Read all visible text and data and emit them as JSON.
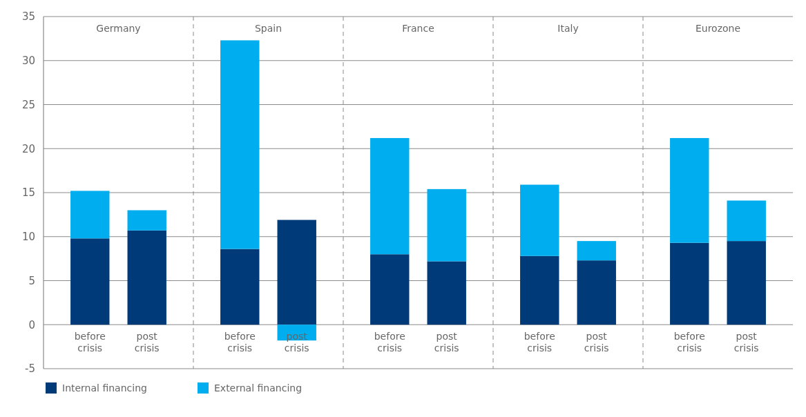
{
  "chart_data": {
    "type": "bar",
    "stacked": true,
    "categories": [
      "before crisis",
      "post crisis",
      "before crisis",
      "post crisis",
      "before crisis",
      "post crisis",
      "before crisis",
      "post crisis",
      "before crisis",
      "post crisis"
    ],
    "series": [
      {
        "name": "Internal financing",
        "color": "#003a78",
        "values": [
          9.8,
          10.7,
          8.6,
          11.9,
          8.0,
          7.2,
          7.8,
          7.3,
          9.3,
          9.5
        ]
      },
      {
        "name": "External financing",
        "color": "#00aeef",
        "values": [
          5.4,
          2.3,
          23.7,
          -1.8,
          13.2,
          8.2,
          8.1,
          2.2,
          11.9,
          4.6
        ]
      }
    ],
    "annotations": [
      "Germany",
      "Spain",
      "France",
      "Italy",
      "Eurozone"
    ],
    "ylim": [
      -5,
      35
    ],
    "yticks": [
      -5,
      0,
      5,
      10,
      15,
      20,
      25,
      30,
      35
    ],
    "grid": "y",
    "legend": "bottom left"
  }
}
